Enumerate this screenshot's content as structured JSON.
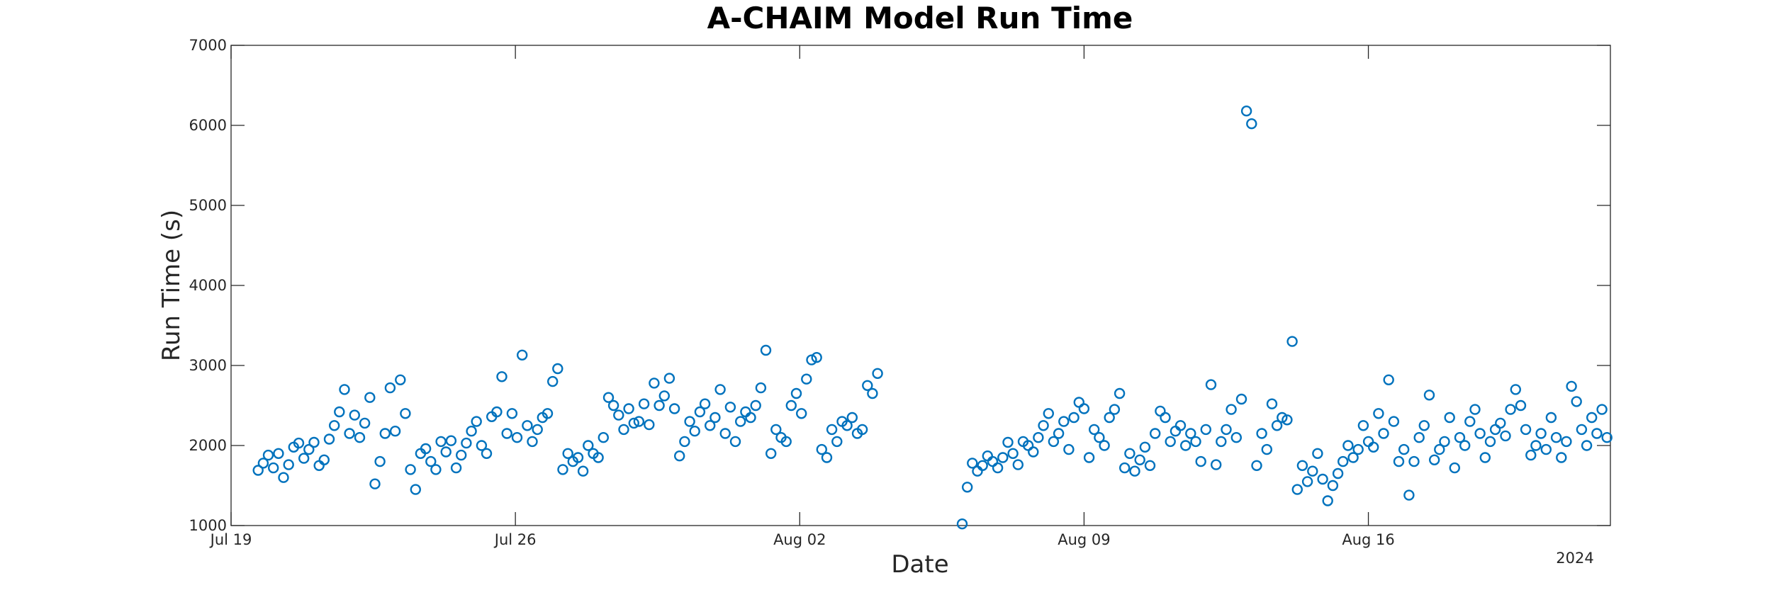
{
  "chart_data": {
    "type": "scatter",
    "title": "A-CHAIM Model Run Time",
    "xlabel": "Date",
    "ylabel": "Run Time (s)",
    "x_tick_labels": [
      "Jul 19",
      "Jul 26",
      "Aug 02",
      "Aug 09",
      "Aug 16"
    ],
    "x_secondary_label": "2024",
    "y_ticks": [
      1000,
      2000,
      3000,
      4000,
      5000,
      6000,
      7000
    ],
    "xlim": [
      "2024-07-19",
      "2024-08-21T23:00"
    ],
    "ylim": [
      1000,
      7000
    ],
    "grid": false,
    "marker": "open-circle",
    "series_color": "#0072BD",
    "series": [
      {
        "points": [
          [
            "2024-07-19T16:00",
            1690
          ],
          [
            "2024-07-19T19:00",
            1780
          ],
          [
            "2024-07-19T22:00",
            1880
          ],
          [
            "2024-07-20T01:00",
            1720
          ],
          [
            "2024-07-20T04:00",
            1900
          ],
          [
            "2024-07-20T07:00",
            1600
          ],
          [
            "2024-07-20T10:00",
            1760
          ],
          [
            "2024-07-20T13:00",
            1980
          ],
          [
            "2024-07-20T16:00",
            2030
          ],
          [
            "2024-07-20T19:00",
            1840
          ],
          [
            "2024-07-20T22:00",
            1950
          ],
          [
            "2024-07-21T01:00",
            2040
          ],
          [
            "2024-07-21T04:00",
            1750
          ],
          [
            "2024-07-21T07:00",
            1820
          ],
          [
            "2024-07-21T10:00",
            2080
          ],
          [
            "2024-07-21T13:00",
            2250
          ],
          [
            "2024-07-21T16:00",
            2420
          ],
          [
            "2024-07-21T19:00",
            2700
          ],
          [
            "2024-07-21T22:00",
            2150
          ],
          [
            "2024-07-22T01:00",
            2380
          ],
          [
            "2024-07-22T04:00",
            2100
          ],
          [
            "2024-07-22T07:00",
            2280
          ],
          [
            "2024-07-22T10:00",
            2600
          ],
          [
            "2024-07-22T13:00",
            1520
          ],
          [
            "2024-07-22T16:00",
            1800
          ],
          [
            "2024-07-22T19:00",
            2150
          ],
          [
            "2024-07-22T22:00",
            2720
          ],
          [
            "2024-07-23T01:00",
            2180
          ],
          [
            "2024-07-23T04:00",
            2820
          ],
          [
            "2024-07-23T07:00",
            2400
          ],
          [
            "2024-07-23T10:00",
            1700
          ],
          [
            "2024-07-23T13:00",
            1450
          ],
          [
            "2024-07-23T16:00",
            1900
          ],
          [
            "2024-07-23T19:00",
            1960
          ],
          [
            "2024-07-23T22:00",
            1800
          ],
          [
            "2024-07-24T01:00",
            1700
          ],
          [
            "2024-07-24T04:00",
            2050
          ],
          [
            "2024-07-24T07:00",
            1920
          ],
          [
            "2024-07-24T10:00",
            2060
          ],
          [
            "2024-07-24T13:00",
            1720
          ],
          [
            "2024-07-24T16:00",
            1880
          ],
          [
            "2024-07-24T19:00",
            2030
          ],
          [
            "2024-07-24T22:00",
            2180
          ],
          [
            "2024-07-25T01:00",
            2300
          ],
          [
            "2024-07-25T04:00",
            2000
          ],
          [
            "2024-07-25T07:00",
            1900
          ],
          [
            "2024-07-25T10:00",
            2360
          ],
          [
            "2024-07-25T13:00",
            2420
          ],
          [
            "2024-07-25T16:00",
            2860
          ],
          [
            "2024-07-25T19:00",
            2150
          ],
          [
            "2024-07-25T22:00",
            2400
          ],
          [
            "2024-07-26T01:00",
            2100
          ],
          [
            "2024-07-26T04:00",
            3130
          ],
          [
            "2024-07-26T07:00",
            2250
          ],
          [
            "2024-07-26T10:00",
            2050
          ],
          [
            "2024-07-26T13:00",
            2200
          ],
          [
            "2024-07-26T16:00",
            2350
          ],
          [
            "2024-07-26T19:00",
            2400
          ],
          [
            "2024-07-26T22:00",
            2800
          ],
          [
            "2024-07-27T01:00",
            2960
          ],
          [
            "2024-07-27T04:00",
            1700
          ],
          [
            "2024-07-27T07:00",
            1900
          ],
          [
            "2024-07-27T10:00",
            1800
          ],
          [
            "2024-07-27T13:00",
            1850
          ],
          [
            "2024-07-27T16:00",
            1680
          ],
          [
            "2024-07-27T19:00",
            2000
          ],
          [
            "2024-07-27T22:00",
            1900
          ],
          [
            "2024-07-28T01:00",
            1850
          ],
          [
            "2024-07-28T04:00",
            2100
          ],
          [
            "2024-07-28T07:00",
            2600
          ],
          [
            "2024-07-28T10:00",
            2500
          ],
          [
            "2024-07-28T13:00",
            2380
          ],
          [
            "2024-07-28T16:00",
            2200
          ],
          [
            "2024-07-28T19:00",
            2460
          ],
          [
            "2024-07-28T22:00",
            2280
          ],
          [
            "2024-07-29T01:00",
            2300
          ],
          [
            "2024-07-29T04:00",
            2520
          ],
          [
            "2024-07-29T07:00",
            2260
          ],
          [
            "2024-07-29T10:00",
            2780
          ],
          [
            "2024-07-29T13:00",
            2500
          ],
          [
            "2024-07-29T16:00",
            2620
          ],
          [
            "2024-07-29T19:00",
            2840
          ],
          [
            "2024-07-29T22:00",
            2460
          ],
          [
            "2024-07-30T01:00",
            1870
          ],
          [
            "2024-07-30T04:00",
            2050
          ],
          [
            "2024-07-30T07:00",
            2300
          ],
          [
            "2024-07-30T10:00",
            2180
          ],
          [
            "2024-07-30T13:00",
            2420
          ],
          [
            "2024-07-30T16:00",
            2520
          ],
          [
            "2024-07-30T19:00",
            2250
          ],
          [
            "2024-07-30T22:00",
            2350
          ],
          [
            "2024-07-31T01:00",
            2700
          ],
          [
            "2024-07-31T04:00",
            2150
          ],
          [
            "2024-07-31T07:00",
            2480
          ],
          [
            "2024-07-31T10:00",
            2050
          ],
          [
            "2024-07-31T13:00",
            2300
          ],
          [
            "2024-07-31T16:00",
            2420
          ],
          [
            "2024-07-31T19:00",
            2350
          ],
          [
            "2024-07-31T22:00",
            2500
          ],
          [
            "2024-08-01T01:00",
            2720
          ],
          [
            "2024-08-01T04:00",
            3190
          ],
          [
            "2024-08-01T07:00",
            1900
          ],
          [
            "2024-08-01T10:00",
            2200
          ],
          [
            "2024-08-01T13:00",
            2100
          ],
          [
            "2024-08-01T16:00",
            2050
          ],
          [
            "2024-08-01T19:00",
            2500
          ],
          [
            "2024-08-01T22:00",
            2650
          ],
          [
            "2024-08-02T01:00",
            2400
          ],
          [
            "2024-08-02T04:00",
            2830
          ],
          [
            "2024-08-02T07:00",
            3070
          ],
          [
            "2024-08-02T10:00",
            3100
          ],
          [
            "2024-08-02T13:00",
            1950
          ],
          [
            "2024-08-02T16:00",
            1850
          ],
          [
            "2024-08-02T19:00",
            2200
          ],
          [
            "2024-08-02T22:00",
            2050
          ],
          [
            "2024-08-03T01:00",
            2300
          ],
          [
            "2024-08-03T04:00",
            2250
          ],
          [
            "2024-08-03T07:00",
            2350
          ],
          [
            "2024-08-03T10:00",
            2150
          ],
          [
            "2024-08-03T13:00",
            2200
          ],
          [
            "2024-08-03T16:00",
            2750
          ],
          [
            "2024-08-03T19:00",
            2650
          ],
          [
            "2024-08-03T22:00",
            2900
          ],
          [
            "2024-08-06T00:00",
            1020
          ],
          [
            "2024-08-06T03:00",
            1480
          ],
          [
            "2024-08-06T06:00",
            1780
          ],
          [
            "2024-08-06T09:00",
            1680
          ],
          [
            "2024-08-06T12:00",
            1750
          ],
          [
            "2024-08-06T15:00",
            1870
          ],
          [
            "2024-08-06T18:00",
            1800
          ],
          [
            "2024-08-06T21:00",
            1720
          ],
          [
            "2024-08-07T00:00",
            1850
          ],
          [
            "2024-08-07T03:00",
            2040
          ],
          [
            "2024-08-07T06:00",
            1900
          ],
          [
            "2024-08-07T09:00",
            1760
          ],
          [
            "2024-08-07T12:00",
            2050
          ],
          [
            "2024-08-07T15:00",
            2000
          ],
          [
            "2024-08-07T18:00",
            1920
          ],
          [
            "2024-08-07T21:00",
            2100
          ],
          [
            "2024-08-08T00:00",
            2250
          ],
          [
            "2024-08-08T03:00",
            2400
          ],
          [
            "2024-08-08T06:00",
            2050
          ],
          [
            "2024-08-08T09:00",
            2150
          ],
          [
            "2024-08-08T12:00",
            2300
          ],
          [
            "2024-08-08T15:00",
            1950
          ],
          [
            "2024-08-08T18:00",
            2350
          ],
          [
            "2024-08-08T21:00",
            2540
          ],
          [
            "2024-08-09T00:00",
            2460
          ],
          [
            "2024-08-09T03:00",
            1850
          ],
          [
            "2024-08-09T06:00",
            2200
          ],
          [
            "2024-08-09T09:00",
            2100
          ],
          [
            "2024-08-09T12:00",
            2000
          ],
          [
            "2024-08-09T15:00",
            2350
          ],
          [
            "2024-08-09T18:00",
            2450
          ],
          [
            "2024-08-09T21:00",
            2650
          ],
          [
            "2024-08-10T00:00",
            1720
          ],
          [
            "2024-08-10T03:00",
            1900
          ],
          [
            "2024-08-10T06:00",
            1680
          ],
          [
            "2024-08-10T09:00",
            1820
          ],
          [
            "2024-08-10T12:00",
            1980
          ],
          [
            "2024-08-10T15:00",
            1750
          ],
          [
            "2024-08-10T18:00",
            2150
          ],
          [
            "2024-08-10T21:00",
            2430
          ],
          [
            "2024-08-11T00:00",
            2350
          ],
          [
            "2024-08-11T03:00",
            2050
          ],
          [
            "2024-08-11T06:00",
            2180
          ],
          [
            "2024-08-11T09:00",
            2250
          ],
          [
            "2024-08-11T12:00",
            2000
          ],
          [
            "2024-08-11T15:00",
            2150
          ],
          [
            "2024-08-11T18:00",
            2050
          ],
          [
            "2024-08-11T21:00",
            1800
          ],
          [
            "2024-08-12T00:00",
            2200
          ],
          [
            "2024-08-12T03:00",
            2760
          ],
          [
            "2024-08-12T06:00",
            1760
          ],
          [
            "2024-08-12T09:00",
            2050
          ],
          [
            "2024-08-12T12:00",
            2200
          ],
          [
            "2024-08-12T15:00",
            2450
          ],
          [
            "2024-08-12T18:00",
            2100
          ],
          [
            "2024-08-12T21:00",
            2580
          ],
          [
            "2024-08-13T00:00",
            6180
          ],
          [
            "2024-08-13T03:00",
            6020
          ],
          [
            "2024-08-13T06:00",
            1750
          ],
          [
            "2024-08-13T09:00",
            2150
          ],
          [
            "2024-08-13T12:00",
            1950
          ],
          [
            "2024-08-13T15:00",
            2520
          ],
          [
            "2024-08-13T18:00",
            2250
          ],
          [
            "2024-08-13T21:00",
            2350
          ],
          [
            "2024-08-14T00:00",
            2320
          ],
          [
            "2024-08-14T03:00",
            3300
          ],
          [
            "2024-08-14T06:00",
            1450
          ],
          [
            "2024-08-14T09:00",
            1750
          ],
          [
            "2024-08-14T12:00",
            1550
          ],
          [
            "2024-08-14T15:00",
            1680
          ],
          [
            "2024-08-14T18:00",
            1900
          ],
          [
            "2024-08-14T21:00",
            1580
          ],
          [
            "2024-08-15T00:00",
            1310
          ],
          [
            "2024-08-15T03:00",
            1500
          ],
          [
            "2024-08-15T06:00",
            1650
          ],
          [
            "2024-08-15T09:00",
            1800
          ],
          [
            "2024-08-15T12:00",
            2000
          ],
          [
            "2024-08-15T15:00",
            1850
          ],
          [
            "2024-08-15T18:00",
            1950
          ],
          [
            "2024-08-15T21:00",
            2250
          ],
          [
            "2024-08-16T00:00",
            2050
          ],
          [
            "2024-08-16T03:00",
            1980
          ],
          [
            "2024-08-16T06:00",
            2400
          ],
          [
            "2024-08-16T09:00",
            2150
          ],
          [
            "2024-08-16T12:00",
            2820
          ],
          [
            "2024-08-16T15:00",
            2300
          ],
          [
            "2024-08-16T18:00",
            1800
          ],
          [
            "2024-08-16T21:00",
            1950
          ],
          [
            "2024-08-17T00:00",
            1380
          ],
          [
            "2024-08-17T03:00",
            1800
          ],
          [
            "2024-08-17T06:00",
            2100
          ],
          [
            "2024-08-17T09:00",
            2250
          ],
          [
            "2024-08-17T12:00",
            2630
          ],
          [
            "2024-08-17T15:00",
            1820
          ],
          [
            "2024-08-17T18:00",
            1950
          ],
          [
            "2024-08-17T21:00",
            2050
          ],
          [
            "2024-08-18T00:00",
            2350
          ],
          [
            "2024-08-18T03:00",
            1720
          ],
          [
            "2024-08-18T06:00",
            2100
          ],
          [
            "2024-08-18T09:00",
            2000
          ],
          [
            "2024-08-18T12:00",
            2300
          ],
          [
            "2024-08-18T15:00",
            2450
          ],
          [
            "2024-08-18T18:00",
            2150
          ],
          [
            "2024-08-18T21:00",
            1850
          ],
          [
            "2024-08-19T00:00",
            2050
          ],
          [
            "2024-08-19T03:00",
            2200
          ],
          [
            "2024-08-19T06:00",
            2280
          ],
          [
            "2024-08-19T09:00",
            2120
          ],
          [
            "2024-08-19T12:00",
            2450
          ],
          [
            "2024-08-19T15:00",
            2700
          ],
          [
            "2024-08-19T18:00",
            2500
          ],
          [
            "2024-08-19T21:00",
            2200
          ],
          [
            "2024-08-20T00:00",
            1880
          ],
          [
            "2024-08-20T03:00",
            2000
          ],
          [
            "2024-08-20T06:00",
            2150
          ],
          [
            "2024-08-20T09:00",
            1950
          ],
          [
            "2024-08-20T12:00",
            2350
          ],
          [
            "2024-08-20T15:00",
            2100
          ],
          [
            "2024-08-20T18:00",
            1850
          ],
          [
            "2024-08-20T21:00",
            2050
          ],
          [
            "2024-08-21T00:00",
            2740
          ],
          [
            "2024-08-21T03:00",
            2550
          ],
          [
            "2024-08-21T06:00",
            2200
          ],
          [
            "2024-08-21T09:00",
            2000
          ],
          [
            "2024-08-21T12:00",
            2350
          ],
          [
            "2024-08-21T15:00",
            2150
          ],
          [
            "2024-08-21T18:00",
            2450
          ],
          [
            "2024-08-21T21:00",
            2100
          ]
        ]
      }
    ]
  }
}
